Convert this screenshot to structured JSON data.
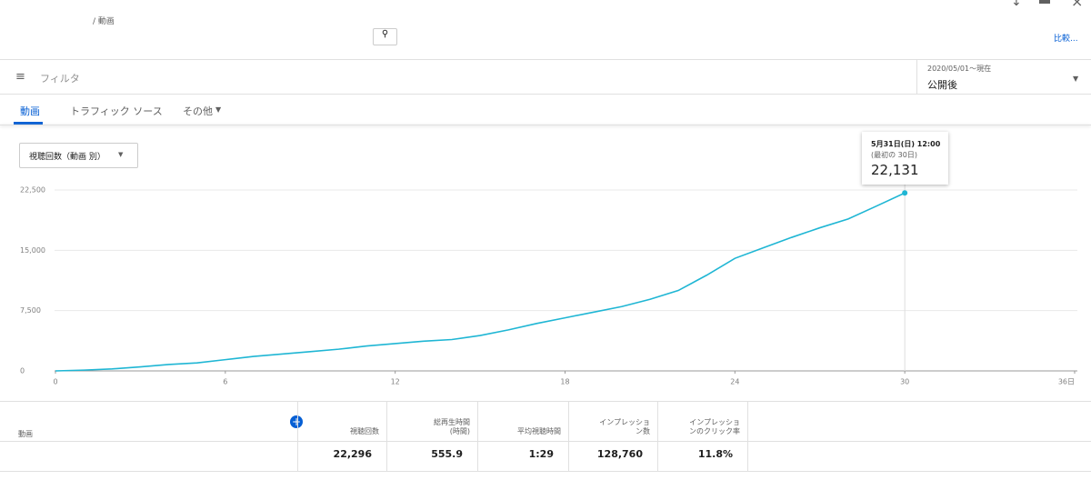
{
  "header": {
    "breadcrumb": "/ 動画",
    "compare": "比較..."
  },
  "filter": {
    "placeholder": "フィルタ",
    "date_range": "2020/05/01～現在",
    "period": "公開後"
  },
  "tabs": [
    "動画",
    "トラフィック ソース",
    "その他"
  ],
  "metric_selector": "視聴回数（動画 別）",
  "chart_data": {
    "type": "line",
    "x": [
      0,
      1,
      2,
      3,
      4,
      5,
      6,
      7,
      8,
      9,
      10,
      11,
      12,
      13,
      14,
      15,
      16,
      17,
      18,
      19,
      20,
      21,
      22,
      23,
      24,
      25,
      26,
      27,
      28,
      29,
      30
    ],
    "series": [
      {
        "color": "#1fb6d4",
        "values": [
          0,
          100,
          250,
          500,
          800,
          1000,
          1400,
          1800,
          2100,
          2400,
          2700,
          3100,
          3400,
          3700,
          3900,
          4400,
          5100,
          5900,
          6600,
          7300,
          8000,
          8900,
          10000,
          11900,
          14000,
          15300,
          16600,
          17800,
          18900,
          20500,
          22131
        ]
      }
    ],
    "xlim": [
      0,
      36
    ],
    "xticks": [
      0,
      6,
      12,
      18,
      24,
      30,
      {
        "value": 36,
        "label": "36日"
      }
    ],
    "ylim": [
      0,
      22500
    ],
    "yticks": [
      0,
      {
        "value": 7500,
        "label": "7,500"
      },
      {
        "value": 15000,
        "label": "15,000"
      },
      {
        "value": 22500,
        "label": "22,500"
      }
    ],
    "grid": true,
    "tooltip": {
      "date": "5月31日(日) 12:00",
      "period": "(最初の 30日)",
      "value_label": "22,131"
    }
  },
  "table": {
    "columns": [
      "動画",
      "視聴回数",
      "総再生時間\n(時間)",
      "平均視聴時間",
      "インプレッション数",
      "インプレッションのクリック率"
    ],
    "totals": [
      "22,296",
      "555.9",
      "1:29",
      "128,760",
      "11.8%"
    ]
  }
}
